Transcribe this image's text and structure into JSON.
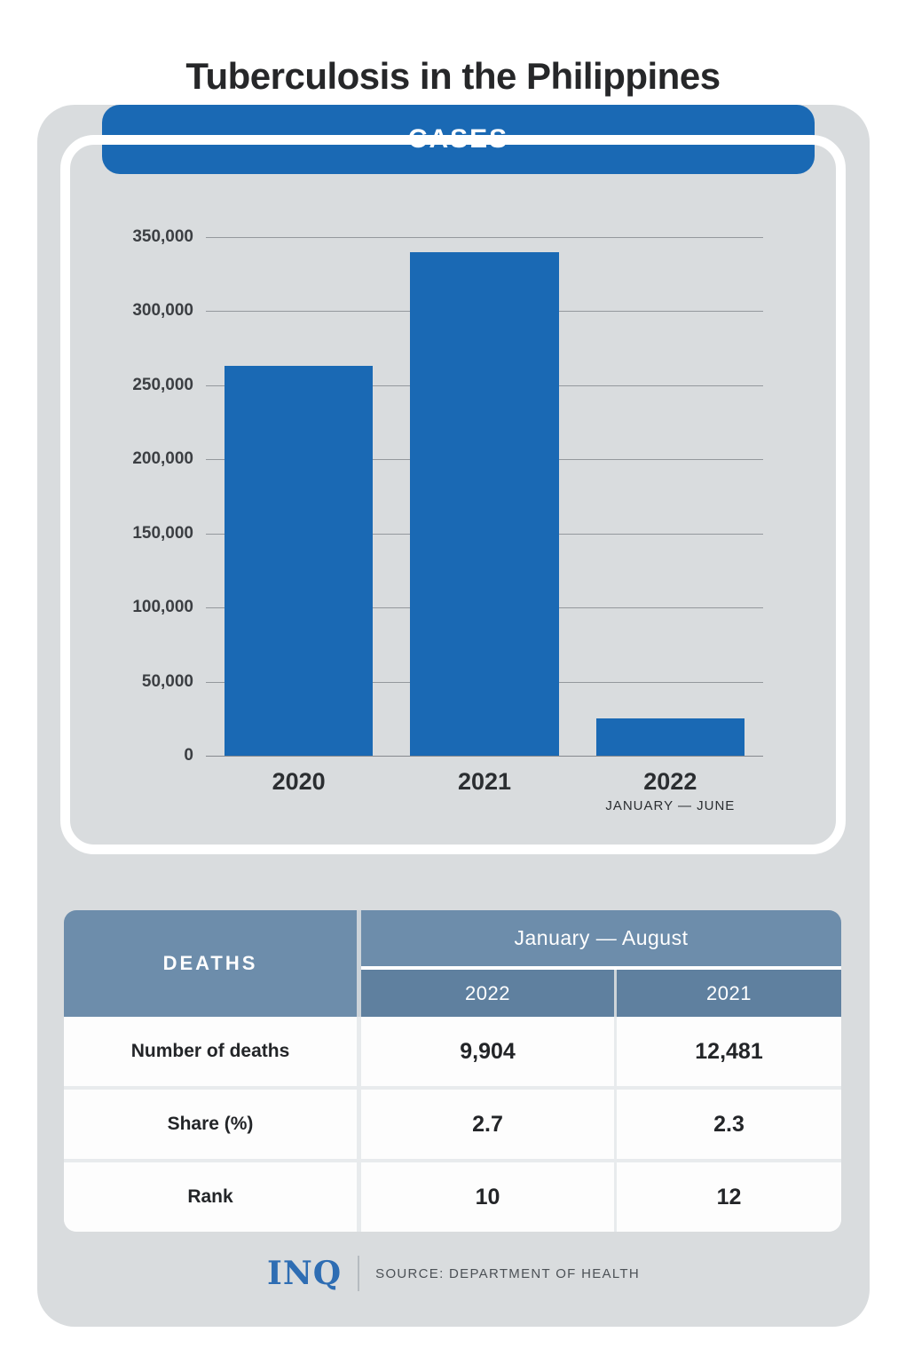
{
  "page": {
    "title": "Tuberculosis in the Philippines"
  },
  "colors": {
    "accent_blue": "#1a69b4",
    "card_gray": "#d9dcde",
    "table_header_blue": "#6d8dab",
    "table_subheader_blue": "#5f809f",
    "gridline_gray": "#94989d",
    "inq_blue": "#2e6db3"
  },
  "chart_data": {
    "type": "bar",
    "title": "CASES",
    "categories": [
      "2020",
      "2021",
      "2022"
    ],
    "category_sublabels": [
      "",
      "",
      "JANUARY — JUNE"
    ],
    "values": [
      263000,
      340000,
      25000
    ],
    "xlabel": "",
    "ylabel": "",
    "ylim": [
      0,
      350000
    ],
    "yticks": [
      {
        "value": 350000,
        "label": "350,000"
      },
      {
        "value": 300000,
        "label": "300,000"
      },
      {
        "value": 250000,
        "label": "250,000"
      },
      {
        "value": 200000,
        "label": "200,000"
      },
      {
        "value": 150000,
        "label": "150,000"
      },
      {
        "value": 100000,
        "label": "100,000"
      },
      {
        "value": 50000,
        "label": "50,000"
      },
      {
        "value": 0,
        "label": "0"
      }
    ],
    "grid": true,
    "legend": false,
    "bar_color": "#1a69b4"
  },
  "deaths_table": {
    "title": "DEATHS",
    "span_header": "January — August",
    "col_headers": [
      "2022",
      "2021"
    ],
    "rows": [
      {
        "label": "Number of deaths",
        "values": [
          "9,904",
          "12,481"
        ]
      },
      {
        "label": "Share (%)",
        "values": [
          "2.7",
          "2.3"
        ]
      },
      {
        "label": "Rank",
        "values": [
          "10",
          "12"
        ]
      }
    ]
  },
  "footer": {
    "logo": "INQ",
    "source": "SOURCE: DEPARTMENT OF HEALTH"
  }
}
